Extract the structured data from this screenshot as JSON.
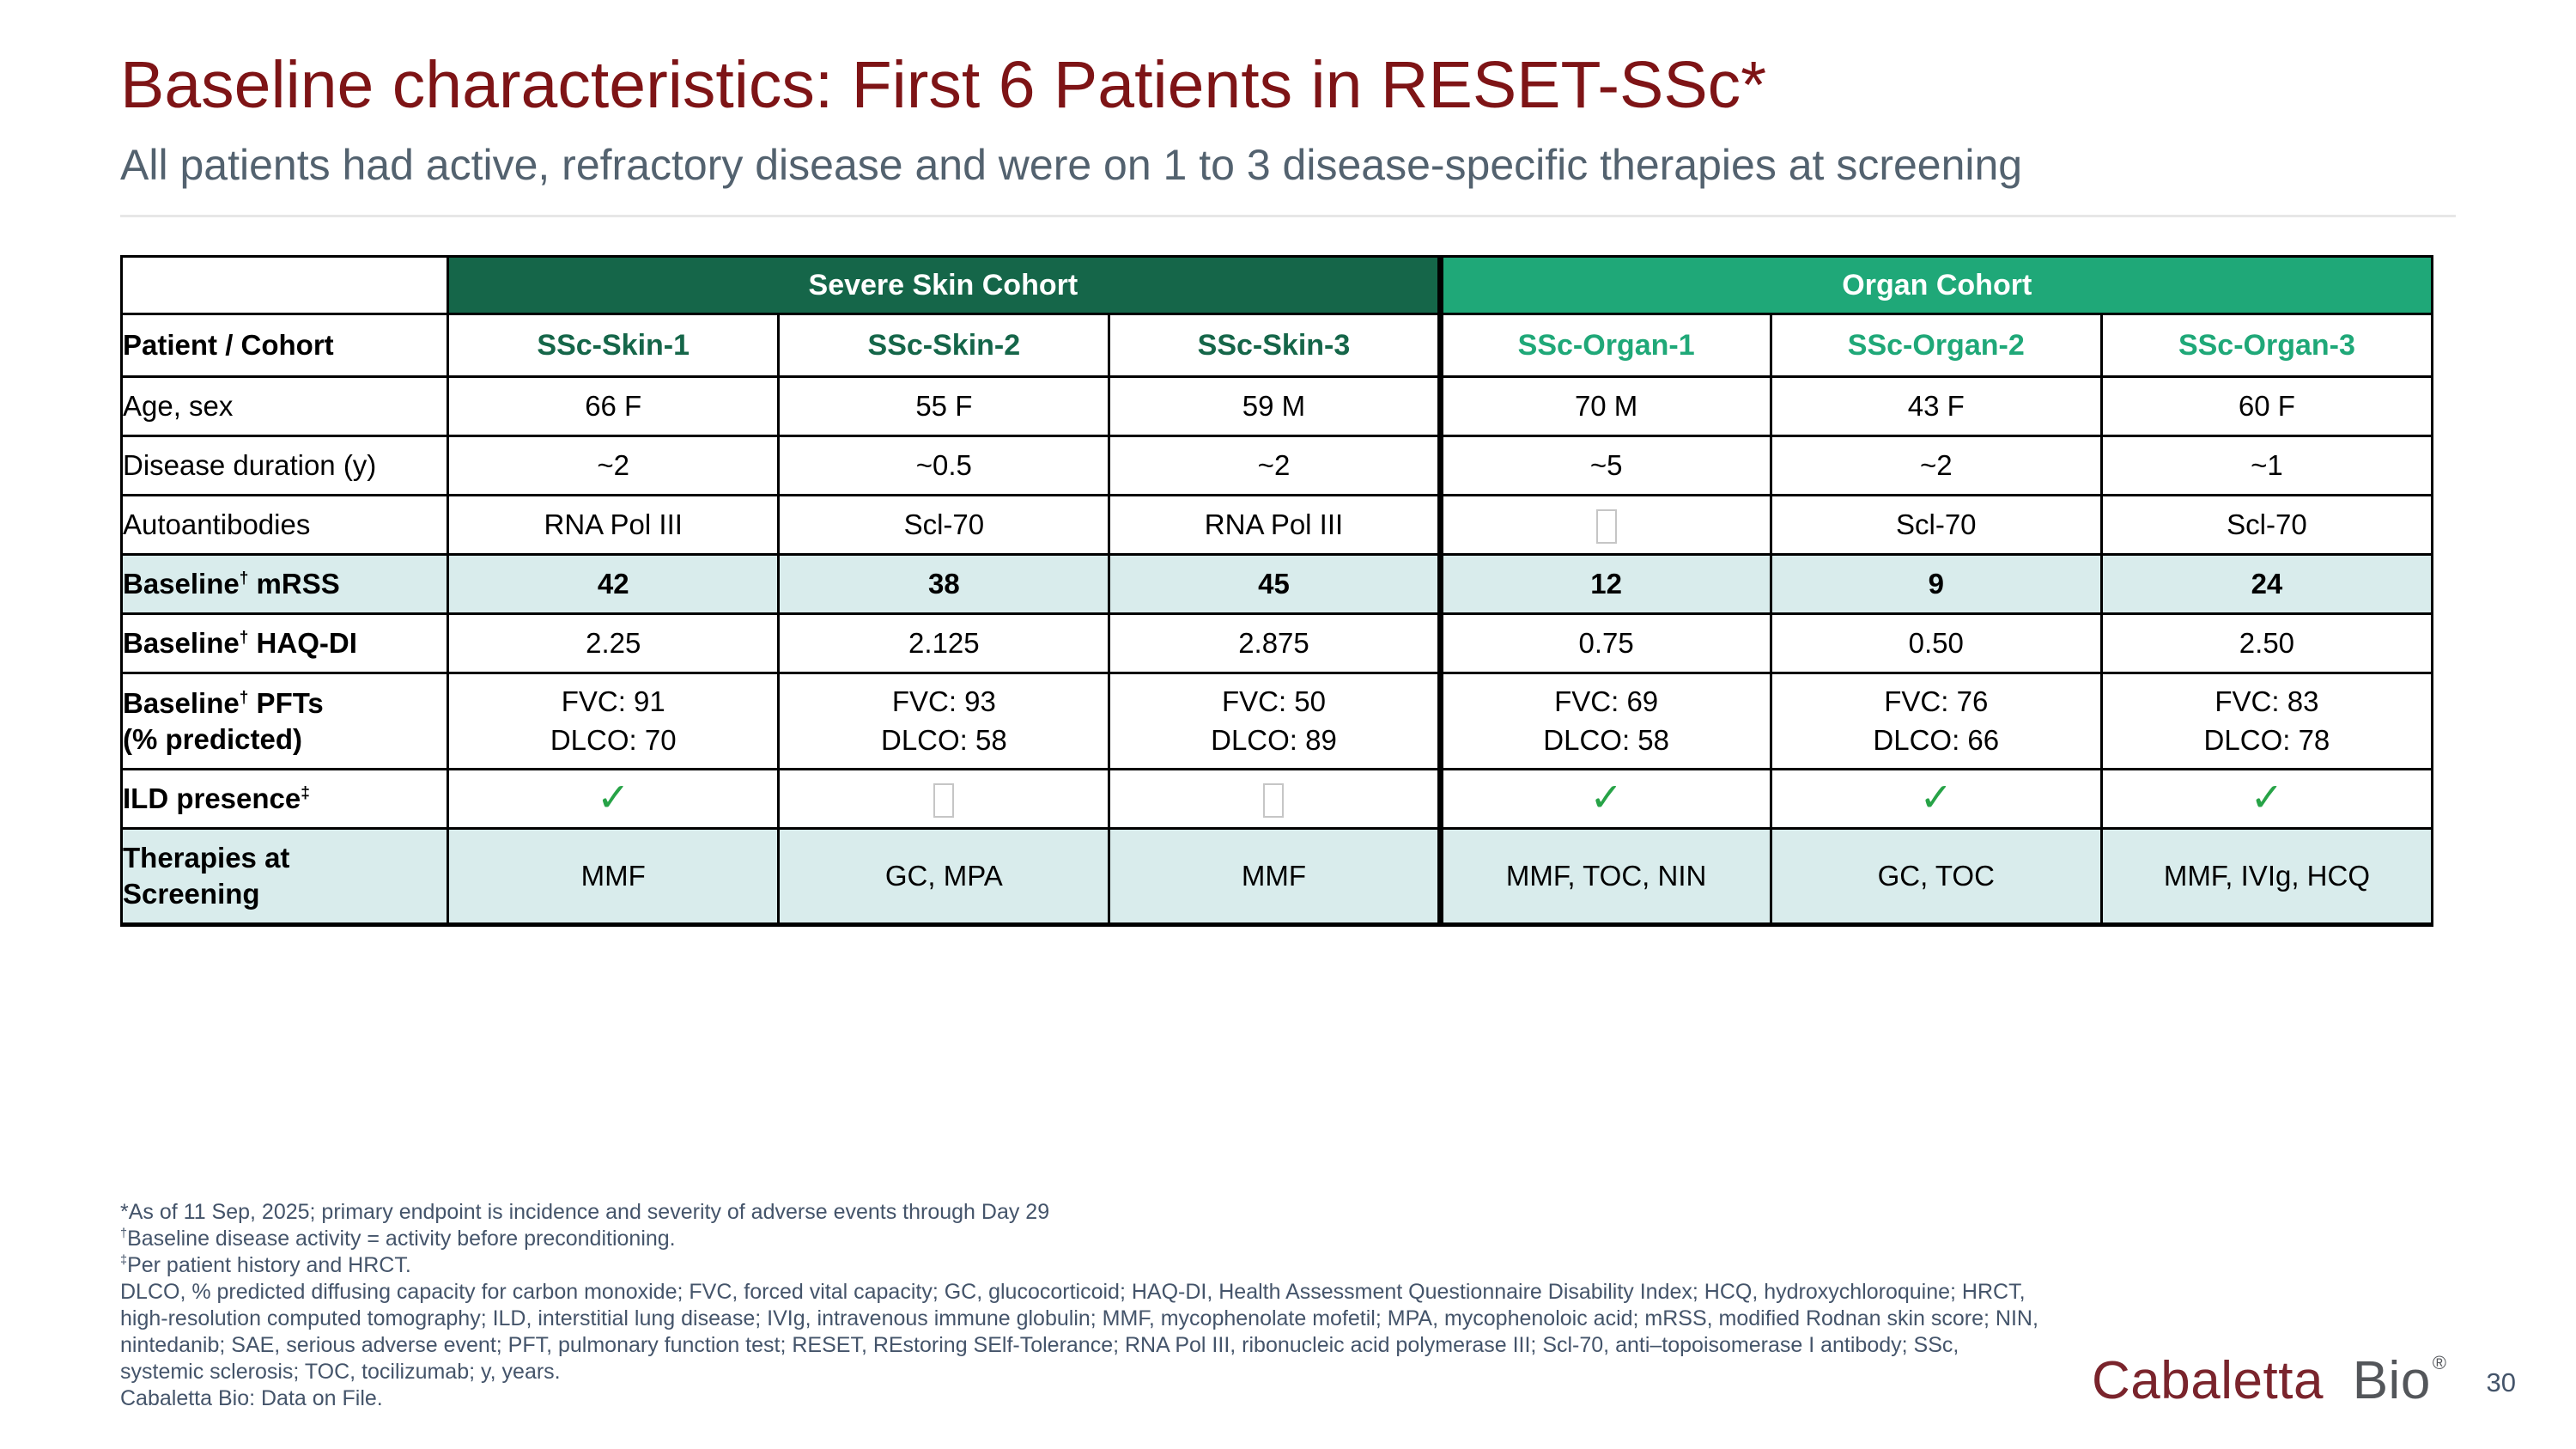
{
  "slide": {
    "title": "Baseline characteristics: First 6 Patients in RESET-SSc*",
    "subtitle": "All patients had active, refractory disease and were on 1 to 3 disease-specific therapies at screening",
    "page_number": "30"
  },
  "logo": {
    "word1": "Cabaletta",
    "word2": "Bio",
    "registered": "®"
  },
  "colors": {
    "title-maroon": "#7E1416",
    "subtitle-slate": "#53626F",
    "footnote-slate": "#44546A",
    "dark-green": "#156649",
    "light-green": "#1FA878",
    "row-shade": "#D9ECEC",
    "check-green": "#27A347",
    "logo-maroon": "#7A242C",
    "logo-gray": "#53565A",
    "border-black": "#000000",
    "divider-gray": "#E7E7E7"
  },
  "table": {
    "corner_label": "Patient / Cohort",
    "icons": {
      "check": "✓"
    },
    "cohorts": [
      {
        "name": "Severe Skin Cohort",
        "color": "#156649",
        "columns": [
          "SSc-Skin-1",
          "SSc-Skin-2",
          "SSc-Skin-3"
        ]
      },
      {
        "name": "Organ Cohort",
        "color": "#1FA878",
        "columns": [
          "SSc-Organ-1",
          "SSc-Organ-2",
          "SSc-Organ-3"
        ]
      }
    ],
    "rows": [
      {
        "label": "Age, sex",
        "label_bold": false,
        "shaded": false,
        "cells": [
          "66 F",
          "55 F",
          "59 M",
          "70 M",
          "43 F",
          "60 F"
        ]
      },
      {
        "label": "Disease duration (y)",
        "label_bold": false,
        "shaded": false,
        "cells": [
          "~2",
          "~0.5",
          "~2",
          "~5",
          "~2",
          "~1"
        ]
      },
      {
        "label": "Autoantibodies",
        "label_bold": false,
        "shaded": false,
        "cells": [
          "RNA Pol III",
          "Scl-70",
          "RNA Pol III",
          {
            "t": "box"
          },
          "Scl-70",
          "Scl-70"
        ]
      },
      {
        "label": "Baseline† mRSS",
        "label_bold": true,
        "shaded": true,
        "value_bold": true,
        "cells": [
          "42",
          "38",
          "45",
          "12",
          "9",
          "24"
        ]
      },
      {
        "label": "Baseline† HAQ-DI",
        "label_bold": true,
        "shaded": false,
        "cells": [
          "2.25",
          "2.125",
          "2.875",
          "0.75",
          "0.50",
          "2.50"
        ]
      },
      {
        "label": "Baseline† PFTs\n(% predicted)",
        "label_bold": true,
        "shaded": false,
        "tall": true,
        "cells": [
          {
            "t": "lines",
            "v": [
              "FVC: 91",
              "DLCO: 70"
            ]
          },
          {
            "t": "lines",
            "v": [
              "FVC: 93",
              "DLCO: 58"
            ]
          },
          {
            "t": "lines",
            "v": [
              "FVC: 50",
              "DLCO: 89"
            ]
          },
          {
            "t": "lines",
            "v": [
              "FVC: 69",
              "DLCO: 58"
            ]
          },
          {
            "t": "lines",
            "v": [
              "FVC: 76",
              "DLCO: 66"
            ]
          },
          {
            "t": "lines",
            "v": [
              "FVC: 83",
              "DLCO: 78"
            ]
          }
        ]
      },
      {
        "label": "ILD presence‡",
        "label_bold": true,
        "shaded": false,
        "cells": [
          {
            "t": "check"
          },
          {
            "t": "box"
          },
          {
            "t": "box"
          },
          {
            "t": "check"
          },
          {
            "t": "check"
          },
          {
            "t": "check"
          }
        ]
      },
      {
        "label": "Therapies at\nScreening",
        "label_bold": true,
        "shaded": true,
        "tall": true,
        "cells": [
          "MMF",
          "GC, MPA",
          "MMF",
          "MMF, TOC, NIN",
          "GC, TOC",
          "MMF, IVIg, HCQ"
        ]
      }
    ]
  },
  "footnotes": [
    "*As of 11 Sep, 2025; primary endpoint is incidence and severity of adverse events through Day 29",
    "†Baseline disease activity = activity before preconditioning.",
    "‡Per patient history and HRCT.",
    "DLCO, % predicted diffusing capacity for carbon monoxide; FVC, forced vital capacity; GC, glucocorticoid; HAQ-DI, Health Assessment Questionnaire Disability Index; HCQ, hydroxychloroquine; HRCT,",
    "high-resolution computed tomography; ILD, interstitial lung disease; IVIg, intravenous immune globulin; MMF, mycophenolate mofetil; MPA, mycophenoloic acid; mRSS, modified Rodnan skin score; NIN,",
    "nintedanib; SAE, serious adverse event; PFT, pulmonary function test;  RESET, REstoring SElf-Tolerance; RNA Pol III, ribonucleic acid polymerase III; Scl-70, anti–topoisomerase I antibody; SSc,",
    "systemic sclerosis; TOC, tocilizumab; y, years.",
    "Cabaletta Bio: Data on File."
  ]
}
